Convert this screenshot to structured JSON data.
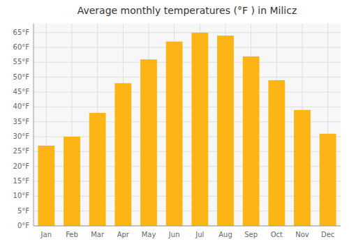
{
  "chart_data": {
    "type": "bar",
    "title": "Average monthly temperatures (°F ) in Milicz",
    "categories": [
      "Jan",
      "Feb",
      "Mar",
      "Apr",
      "May",
      "Jun",
      "Jul",
      "Aug",
      "Sep",
      "Oct",
      "Nov",
      "Dec"
    ],
    "values": [
      27,
      30,
      38,
      48,
      56,
      62,
      65,
      64,
      57,
      49,
      39,
      31
    ],
    "color": "#FDB515",
    "ylim": [
      0,
      68
    ],
    "yticks": [
      {
        "value": 0,
        "label": "0°F"
      },
      {
        "value": 5,
        "label": "5°F"
      },
      {
        "value": 10,
        "label": "10°F"
      },
      {
        "value": 15,
        "label": "15°F"
      },
      {
        "value": 20,
        "label": "20°F"
      },
      {
        "value": 25,
        "label": "25°F"
      },
      {
        "value": 30,
        "label": "30°F"
      },
      {
        "value": 35,
        "label": "35°F"
      },
      {
        "value": 40,
        "label": "40°F"
      },
      {
        "value": 45,
        "label": "45°F"
      },
      {
        "value": 50,
        "label": "50°F"
      },
      {
        "value": 55,
        "label": "55°F"
      },
      {
        "value": 60,
        "label": "60°F"
      },
      {
        "value": 65,
        "label": "65°F"
      }
    ],
    "grid": true
  }
}
